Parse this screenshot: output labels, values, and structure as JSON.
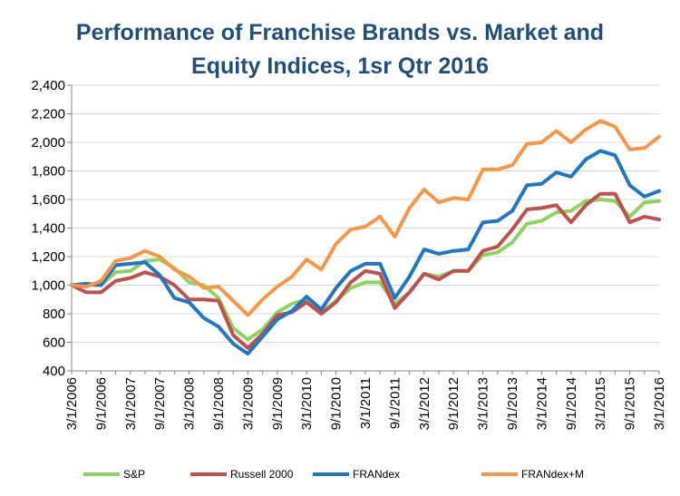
{
  "chart_data": {
    "type": "line",
    "title_lines": [
      "Performance of Franchise Brands vs. Market and",
      "Equity Indices, 1sr Qtr 2016"
    ],
    "xlabel": "",
    "ylabel": "",
    "ylim": [
      400,
      2400
    ],
    "yticks": [
      400,
      600,
      800,
      1000,
      1200,
      1400,
      1600,
      1800,
      2000,
      2200,
      2400
    ],
    "ytick_labels": [
      "400",
      "600",
      "800",
      "1,000",
      "1,200",
      "1,400",
      "1,600",
      "1,800",
      "2,000",
      "2,200",
      "2,400"
    ],
    "x": [
      "3/1/2006",
      "6/1/2006",
      "9/1/2006",
      "12/1/2006",
      "3/1/2007",
      "6/1/2007",
      "9/1/2007",
      "12/1/2007",
      "3/1/2008",
      "6/1/2008",
      "9/1/2008",
      "12/1/2008",
      "3/1/2009",
      "6/1/2009",
      "9/1/2009",
      "12/1/2009",
      "3/1/2010",
      "6/1/2010",
      "9/1/2010",
      "12/1/2010",
      "3/1/2011",
      "6/1/2011",
      "9/1/2011",
      "12/1/2011",
      "3/1/2012",
      "6/1/2012",
      "9/1/2012",
      "12/1/2012",
      "3/1/2013",
      "6/1/2013",
      "9/1/2013",
      "12/1/2013",
      "3/1/2014",
      "6/1/2014",
      "9/1/2014",
      "12/1/2014",
      "3/1/2015",
      "6/1/2015",
      "9/1/2015",
      "12/1/2015",
      "3/1/2016"
    ],
    "xtick_labels": [
      "3/1/2006",
      "9/1/2006",
      "3/1/2007",
      "9/1/2007",
      "3/1/2008",
      "9/1/2008",
      "3/1/2009",
      "9/1/2009",
      "3/1/2010",
      "9/1/2010",
      "3/1/2011",
      "9/1/2011",
      "3/1/2012",
      "9/1/2012",
      "3/1/2013",
      "9/1/2013",
      "3/1/2014",
      "9/1/2014",
      "3/1/2015",
      "9/1/2015",
      "3/1/2016"
    ],
    "grid": true,
    "legend_position": "bottom",
    "series": [
      {
        "name": "S&P",
        "color": "#8dd35f",
        "values": [
          1000,
          1000,
          1000,
          1090,
          1100,
          1170,
          1180,
          1120,
          1020,
          1000,
          910,
          700,
          620,
          690,
          810,
          870,
          900,
          810,
          890,
          980,
          1020,
          1020,
          870,
          950,
          1080,
          1060,
          1100,
          1100,
          1210,
          1230,
          1300,
          1430,
          1450,
          1510,
          1520,
          1590,
          1600,
          1590,
          1480,
          1580,
          1590
        ]
      },
      {
        "name": "Russell 2000",
        "color": "#c0504d",
        "values": [
          1000,
          950,
          950,
          1030,
          1050,
          1090,
          1060,
          1000,
          900,
          900,
          890,
          650,
          560,
          660,
          790,
          810,
          880,
          800,
          880,
          1020,
          1100,
          1080,
          840,
          950,
          1080,
          1040,
          1100,
          1100,
          1240,
          1270,
          1390,
          1530,
          1540,
          1560,
          1440,
          1560,
          1640,
          1640,
          1440,
          1480,
          1460
        ]
      },
      {
        "name": "FRANdex",
        "color": "#1f77c4",
        "values": [
          1000,
          1010,
          1000,
          1140,
          1150,
          1160,
          1070,
          910,
          880,
          770,
          710,
          590,
          520,
          640,
          760,
          820,
          920,
          830,
          980,
          1100,
          1150,
          1150,
          910,
          1060,
          1250,
          1220,
          1240,
          1250,
          1440,
          1450,
          1520,
          1700,
          1710,
          1790,
          1760,
          1880,
          1940,
          1910,
          1700,
          1620,
          1660
        ]
      },
      {
        "name": "FRANdex+M",
        "color": "#f79646",
        "values": [
          1000,
          990,
          1030,
          1170,
          1190,
          1240,
          1200,
          1110,
          1060,
          980,
          990,
          890,
          790,
          900,
          990,
          1060,
          1180,
          1110,
          1290,
          1390,
          1410,
          1480,
          1340,
          1540,
          1670,
          1580,
          1610,
          1600,
          1810,
          1810,
          1840,
          1990,
          2000,
          2080,
          2000,
          2090,
          2150,
          2110,
          1950,
          1960,
          2040
        ]
      }
    ]
  }
}
